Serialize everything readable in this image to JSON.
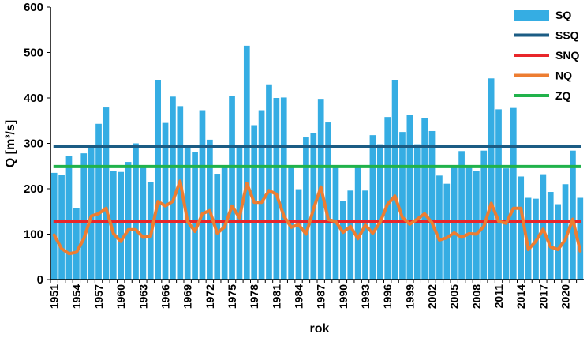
{
  "chart_data": {
    "type": "bar",
    "xlabel": "rok",
    "ylabel": "Q [m³/s]",
    "ylim": [
      0,
      600
    ],
    "yticks": [
      0,
      100,
      200,
      300,
      400,
      500,
      600
    ],
    "x": [
      1951,
      1952,
      1953,
      1954,
      1955,
      1956,
      1957,
      1958,
      1959,
      1960,
      1961,
      1962,
      1963,
      1964,
      1965,
      1966,
      1967,
      1968,
      1969,
      1970,
      1971,
      1972,
      1973,
      1974,
      1975,
      1976,
      1977,
      1978,
      1979,
      1980,
      1981,
      1982,
      1983,
      1984,
      1985,
      1986,
      1987,
      1988,
      1989,
      1990,
      1991,
      1992,
      1993,
      1994,
      1995,
      1996,
      1997,
      1998,
      1999,
      2000,
      2001,
      2002,
      2003,
      2004,
      2005,
      2006,
      2007,
      2008,
      2009,
      2010,
      2011,
      2012,
      2013,
      2014,
      2015,
      2016,
      2017,
      2018,
      2019,
      2020,
      2021,
      2022
    ],
    "x_tick_labels": [
      "1951",
      "1954",
      "1957",
      "1960",
      "1963",
      "1966",
      "1969",
      "1972",
      "1975",
      "1978",
      "1981",
      "1984",
      "1987",
      "1990",
      "1993",
      "1996",
      "1999",
      "2002",
      "2005",
      "2008",
      "2011",
      "2014",
      "2017",
      "2020"
    ],
    "grid": false,
    "legend_position": "top-right",
    "series": [
      {
        "name": "SQ",
        "type": "bar",
        "color": "#35ADE3",
        "values": [
          235,
          230,
          272,
          157,
          278,
          297,
          343,
          379,
          240,
          237,
          259,
          300,
          247,
          215,
          440,
          345,
          403,
          382,
          295,
          281,
          373,
          308,
          233,
          247,
          405,
          297,
          515,
          340,
          373,
          430,
          400,
          401,
          247,
          199,
          313,
          322,
          398,
          346,
          246,
          173,
          196,
          249,
          196,
          318,
          298,
          358,
          440,
          325,
          362,
          298,
          356,
          327,
          229,
          211,
          251,
          283,
          248,
          240,
          284,
          443,
          375,
          245,
          378,
          227,
          180,
          178,
          232,
          193,
          166,
          210,
          284,
          180
        ]
      },
      {
        "name": "SSQ",
        "type": "hline",
        "color": "#1B5C84",
        "value": 294
      },
      {
        "name": "SNQ",
        "type": "hline",
        "color": "#E8262A",
        "value": 128
      },
      {
        "name": "NQ",
        "type": "line",
        "color": "#ED7D31",
        "values": [
          98,
          68,
          57,
          60,
          90,
          140,
          145,
          157,
          101,
          84,
          110,
          110,
          93,
          95,
          172,
          162,
          172,
          217,
          128,
          106,
          145,
          152,
          102,
          116,
          162,
          136,
          212,
          170,
          170,
          196,
          188,
          140,
          115,
          121,
          100,
          155,
          204,
          132,
          128,
          104,
          117,
          90,
          120,
          102,
          126,
          166,
          184,
          137,
          122,
          133,
          145,
          125,
          87,
          92,
          103,
          93,
          101,
          100,
          117,
          168,
          128,
          124,
          157,
          157,
          66,
          84,
          111,
          72,
          66,
          88,
          133,
          63
        ]
      },
      {
        "name": "ZQ",
        "type": "hline",
        "color": "#21B24B",
        "value": 249
      }
    ]
  }
}
